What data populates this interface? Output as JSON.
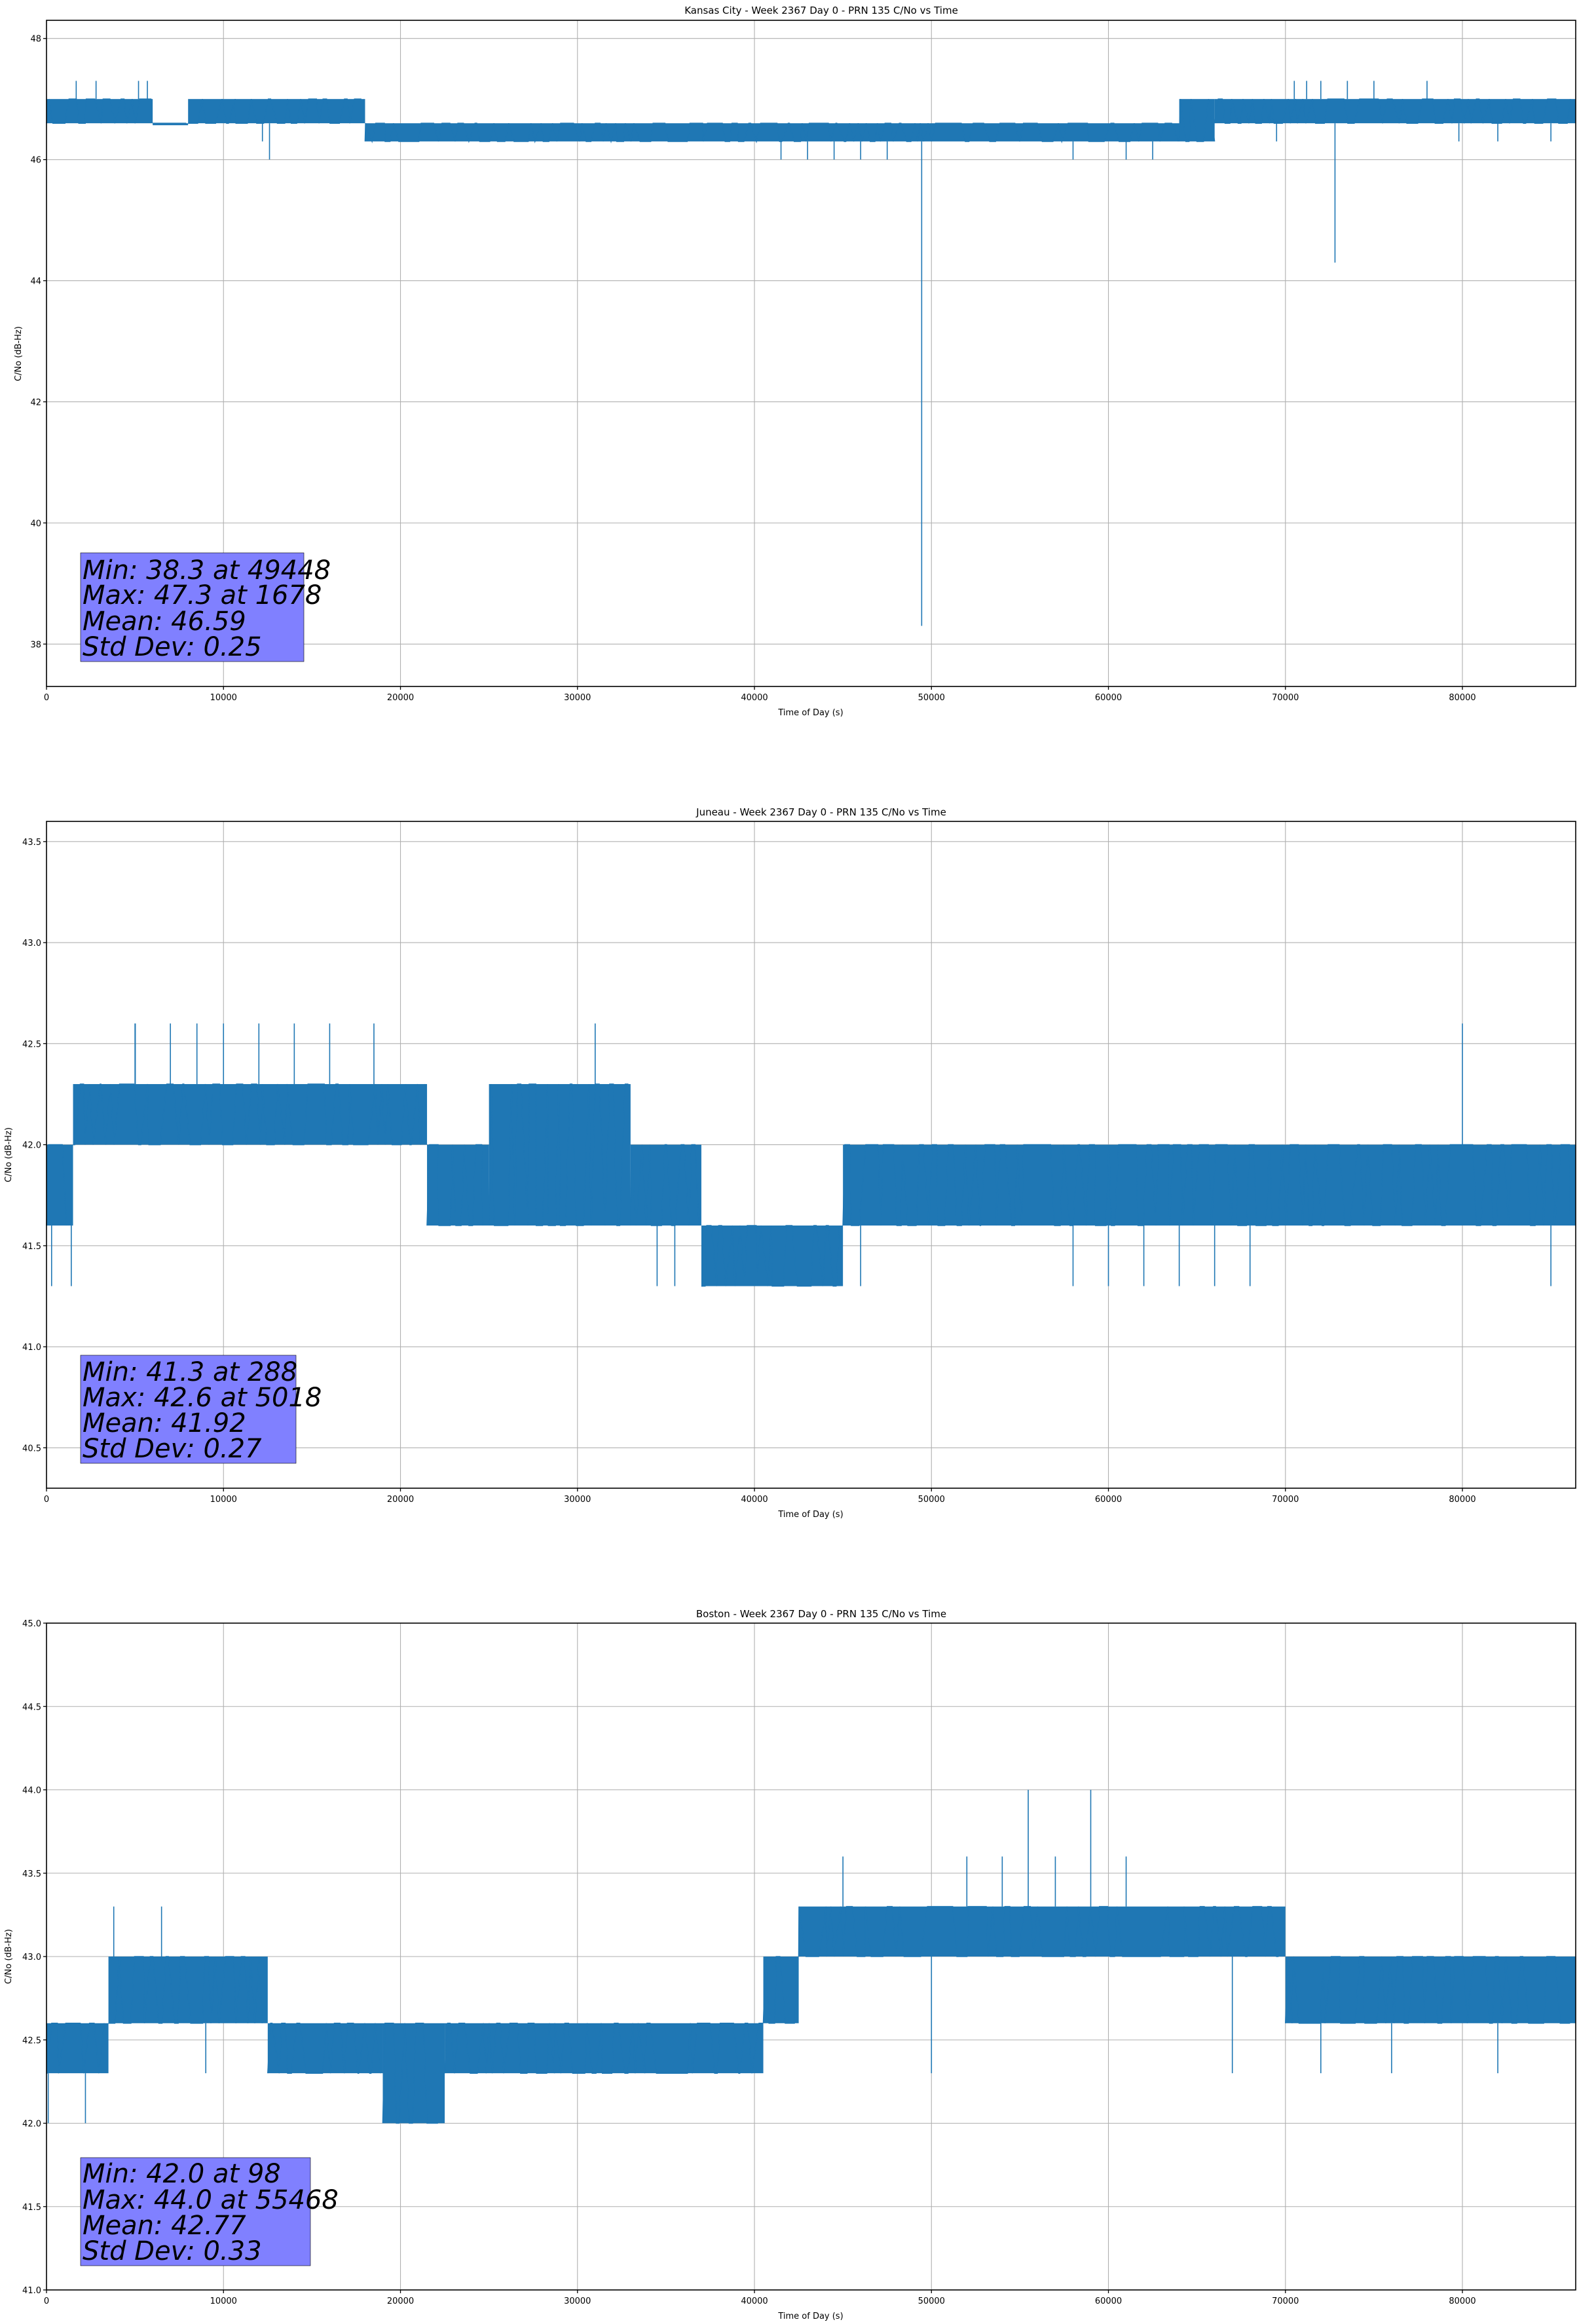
{
  "page": {
    "colors": {
      "series": "#1f77b4",
      "stats_box": "#8080ff",
      "grid": "#b0b0b0"
    }
  },
  "chart_data": [
    {
      "type": "line",
      "title": "Kansas City - Week 2367 Day 0 - PRN 135 C/No vs Time",
      "xlabel": "Time of Day (s)",
      "ylabel": "C/No (dB-Hz)",
      "xlim": [
        0,
        86400
      ],
      "ylim": [
        37.3,
        48.3
      ],
      "xticks": [
        0,
        10000,
        20000,
        30000,
        40000,
        50000,
        60000,
        70000,
        80000
      ],
      "yticks": [
        38,
        40,
        42,
        44,
        46,
        48
      ],
      "ytick_decimals": 0,
      "grid": true,
      "series": [
        {
          "name": "C/No",
          "bands": [
            {
              "x": [
                0,
                6000
              ],
              "lo": 46.6,
              "hi": 47.0
            },
            {
              "x": [
                6000,
                8000
              ],
              "lo": 46.6,
              "hi": 46.6
            },
            {
              "x": [
                8000,
                18000
              ],
              "lo": 46.6,
              "hi": 47.0
            },
            {
              "x": [
                18000,
                64000
              ],
              "lo": 46.3,
              "hi": 46.6
            },
            {
              "x": [
                64000,
                66000
              ],
              "lo": 46.3,
              "hi": 47.0
            },
            {
              "x": [
                66000,
                86400
              ],
              "lo": 46.6,
              "hi": 47.0
            }
          ],
          "spikes": [
            {
              "x": 1678,
              "y": 47.3
            },
            {
              "x": 2800,
              "y": 47.3
            },
            {
              "x": 5200,
              "y": 47.3
            },
            {
              "x": 5700,
              "y": 47.3
            },
            {
              "x": 12600,
              "y": 46.0
            },
            {
              "x": 12200,
              "y": 46.3
            },
            {
              "x": 21000,
              "y": 46.3
            },
            {
              "x": 41500,
              "y": 46.0
            },
            {
              "x": 43000,
              "y": 46.0
            },
            {
              "x": 44500,
              "y": 46.0
            },
            {
              "x": 46000,
              "y": 46.0
            },
            {
              "x": 47500,
              "y": 46.0
            },
            {
              "x": 49448,
              "y": 38.3
            },
            {
              "x": 58000,
              "y": 46.0
            },
            {
              "x": 61000,
              "y": 46.0
            },
            {
              "x": 62500,
              "y": 46.0
            },
            {
              "x": 69500,
              "y": 46.3
            },
            {
              "x": 70500,
              "y": 47.3
            },
            {
              "x": 71200,
              "y": 47.3
            },
            {
              "x": 72000,
              "y": 47.3
            },
            {
              "x": 72800,
              "y": 44.3
            },
            {
              "x": 73500,
              "y": 47.3
            },
            {
              "x": 75000,
              "y": 47.3
            },
            {
              "x": 78000,
              "y": 47.3
            },
            {
              "x": 79800,
              "y": 46.3
            },
            {
              "x": 82000,
              "y": 46.3
            },
            {
              "x": 85000,
              "y": 46.3
            }
          ]
        }
      ],
      "stats": [
        "Min: 38.3 at 49448",
        "Max: 47.3 at 1678",
        "Mean: 46.59",
        "Std Dev: 0.25"
      ]
    },
    {
      "type": "line",
      "title": "Juneau - Week 2367 Day 0 - PRN 135 C/No vs Time",
      "xlabel": "Time of Day (s)",
      "ylabel": "C/No (dB-Hz)",
      "xlim": [
        0,
        86400
      ],
      "ylim": [
        40.3,
        43.6
      ],
      "xticks": [
        0,
        10000,
        20000,
        30000,
        40000,
        50000,
        60000,
        70000,
        80000
      ],
      "yticks": [
        40.5,
        41.0,
        41.5,
        42.0,
        42.5,
        43.0,
        43.5
      ],
      "ytick_decimals": 1,
      "grid": true,
      "series": [
        {
          "name": "C/No",
          "bands": [
            {
              "x": [
                0,
                1500
              ],
              "lo": 41.6,
              "hi": 42.0
            },
            {
              "x": [
                1500,
                21500
              ],
              "lo": 42.0,
              "hi": 42.3
            },
            {
              "x": [
                21500,
                25000
              ],
              "lo": 41.6,
              "hi": 42.0
            },
            {
              "x": [
                25000,
                33000
              ],
              "lo": 41.6,
              "hi": 42.3
            },
            {
              "x": [
                33000,
                37000
              ],
              "lo": 41.6,
              "hi": 42.0
            },
            {
              "x": [
                37000,
                45000
              ],
              "lo": 41.3,
              "hi": 41.6
            },
            {
              "x": [
                45000,
                86400
              ],
              "lo": 41.6,
              "hi": 42.0
            }
          ],
          "spikes": [
            {
              "x": 288,
              "y": 41.3
            },
            {
              "x": 1400,
              "y": 41.3
            },
            {
              "x": 5000,
              "y": 42.6
            },
            {
              "x": 5018,
              "y": 42.6
            },
            {
              "x": 7000,
              "y": 42.6
            },
            {
              "x": 8500,
              "y": 42.6
            },
            {
              "x": 10000,
              "y": 42.6
            },
            {
              "x": 12000,
              "y": 42.6
            },
            {
              "x": 14000,
              "y": 42.6
            },
            {
              "x": 16000,
              "y": 42.6
            },
            {
              "x": 18500,
              "y": 42.6
            },
            {
              "x": 31000,
              "y": 42.6
            },
            {
              "x": 34500,
              "y": 41.3
            },
            {
              "x": 35500,
              "y": 41.3
            },
            {
              "x": 46000,
              "y": 41.3
            },
            {
              "x": 58000,
              "y": 41.3
            },
            {
              "x": 60000,
              "y": 41.3
            },
            {
              "x": 62000,
              "y": 41.3
            },
            {
              "x": 64000,
              "y": 41.3
            },
            {
              "x": 66000,
              "y": 41.3
            },
            {
              "x": 68000,
              "y": 41.3
            },
            {
              "x": 80000,
              "y": 42.6
            },
            {
              "x": 85000,
              "y": 41.3
            }
          ]
        }
      ],
      "stats": [
        "Min: 41.3 at 288",
        "Max: 42.6 at 5018",
        "Mean: 41.92",
        "Std Dev: 0.27"
      ]
    },
    {
      "type": "line",
      "title": "Boston - Week 2367 Day 0 - PRN 135 C/No vs Time",
      "xlabel": "Time of Day (s)",
      "ylabel": "C/No (dB-Hz)",
      "xlim": [
        0,
        86400
      ],
      "ylim": [
        41.0,
        45.0
      ],
      "xticks": [
        0,
        10000,
        20000,
        30000,
        40000,
        50000,
        60000,
        70000,
        80000
      ],
      "yticks": [
        41.0,
        41.5,
        42.0,
        42.5,
        43.0,
        43.5,
        44.0,
        44.5,
        45.0
      ],
      "ytick_decimals": 1,
      "grid": true,
      "series": [
        {
          "name": "C/No",
          "bands": [
            {
              "x": [
                0,
                3500
              ],
              "lo": 42.3,
              "hi": 42.6
            },
            {
              "x": [
                3500,
                12500
              ],
              "lo": 42.6,
              "hi": 43.0
            },
            {
              "x": [
                12500,
                19000
              ],
              "lo": 42.3,
              "hi": 42.6
            },
            {
              "x": [
                19000,
                22500
              ],
              "lo": 42.0,
              "hi": 42.6
            },
            {
              "x": [
                22500,
                40500
              ],
              "lo": 42.3,
              "hi": 42.6
            },
            {
              "x": [
                40500,
                42500
              ],
              "lo": 42.6,
              "hi": 43.0
            },
            {
              "x": [
                42500,
                70000
              ],
              "lo": 43.0,
              "hi": 43.3
            },
            {
              "x": [
                70000,
                86400
              ],
              "lo": 42.6,
              "hi": 43.0
            }
          ],
          "spikes": [
            {
              "x": 98,
              "y": 42.0
            },
            {
              "x": 2200,
              "y": 42.0
            },
            {
              "x": 3800,
              "y": 43.3
            },
            {
              "x": 6500,
              "y": 43.3
            },
            {
              "x": 9000,
              "y": 42.3
            },
            {
              "x": 45000,
              "y": 43.6
            },
            {
              "x": 50000,
              "y": 42.3
            },
            {
              "x": 52000,
              "y": 43.6
            },
            {
              "x": 54000,
              "y": 43.6
            },
            {
              "x": 55468,
              "y": 44.0
            },
            {
              "x": 57000,
              "y": 43.6
            },
            {
              "x": 59000,
              "y": 44.0
            },
            {
              "x": 61000,
              "y": 43.6
            },
            {
              "x": 67000,
              "y": 42.3
            },
            {
              "x": 72000,
              "y": 42.3
            },
            {
              "x": 76000,
              "y": 42.3
            },
            {
              "x": 82000,
              "y": 42.3
            }
          ]
        }
      ],
      "stats": [
        "Min: 42.0 at 98",
        "Max: 44.0 at 55468",
        "Mean: 42.77",
        "Std Dev: 0.33"
      ]
    }
  ]
}
